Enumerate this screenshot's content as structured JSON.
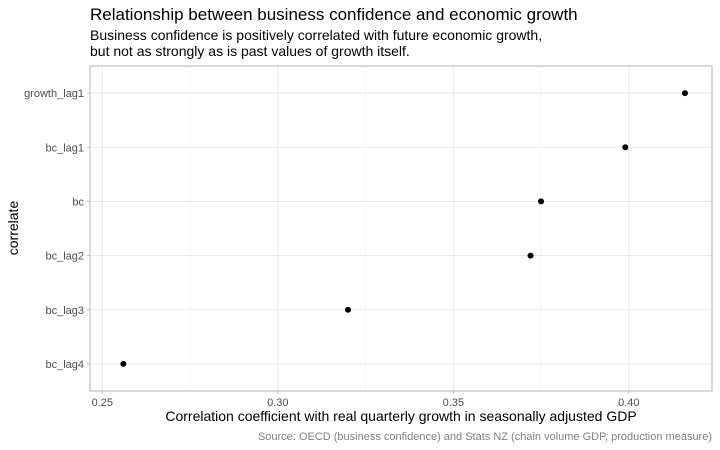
{
  "chart_data": {
    "type": "scatter",
    "title": "Relationship between business confidence and economic growth",
    "subtitle": [
      "Business confidence is positively correlated with future economic growth,",
      "but not as strongly as is past values of growth itself."
    ],
    "xlabel": "Correlation coefficient with real quarterly growth in seasonally adjusted GDP",
    "ylabel": "correlate",
    "caption": "Source: OECD (business confidence) and Stats NZ (chain volume GDP, production measure)",
    "xlim": [
      0.2465,
      0.4237
    ],
    "x_ticks": [
      0.25,
      0.3,
      0.35,
      0.4
    ],
    "x_tick_labels": [
      "0.25",
      "0.30",
      "0.35",
      "0.40"
    ],
    "categories": [
      "growth_lag1",
      "bc_lag1",
      "bc",
      "bc_lag2",
      "bc_lag3",
      "bc_lag4"
    ],
    "values": [
      0.416,
      0.399,
      0.375,
      0.372,
      0.32,
      0.256
    ],
    "grid": true,
    "legend": "none"
  }
}
